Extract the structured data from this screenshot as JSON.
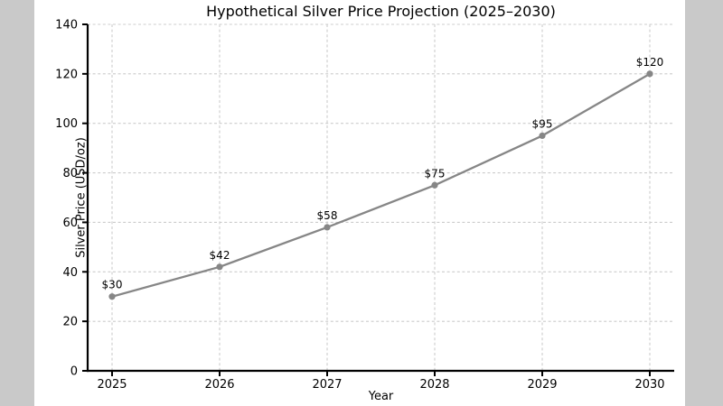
{
  "colors": {
    "canvas_bg": "#c9c9c9",
    "figure_bg": "#ffffff",
    "line": "#868686",
    "marker": "#868686",
    "grid": "#cccccc",
    "axis": "#000000",
    "text": "#000000"
  },
  "chart_data": {
    "type": "line",
    "title": "Hypothetical Silver Price Projection (2025–2030)",
    "xlabel": "Year",
    "ylabel": "Silver Price (USD/oz)",
    "categories": [
      "2025",
      "2026",
      "2027",
      "2028",
      "2029",
      "2030"
    ],
    "values": [
      30,
      42,
      58,
      75,
      95,
      120
    ],
    "point_labels": [
      "$30",
      "$42",
      "$58",
      "$75",
      "$95",
      "$120"
    ],
    "ylim": [
      0,
      140
    ],
    "yticks": [
      0,
      20,
      40,
      60,
      80,
      100,
      120,
      140
    ],
    "grid": true,
    "grid_style": "dashed",
    "legend": null,
    "marker": "circle"
  }
}
